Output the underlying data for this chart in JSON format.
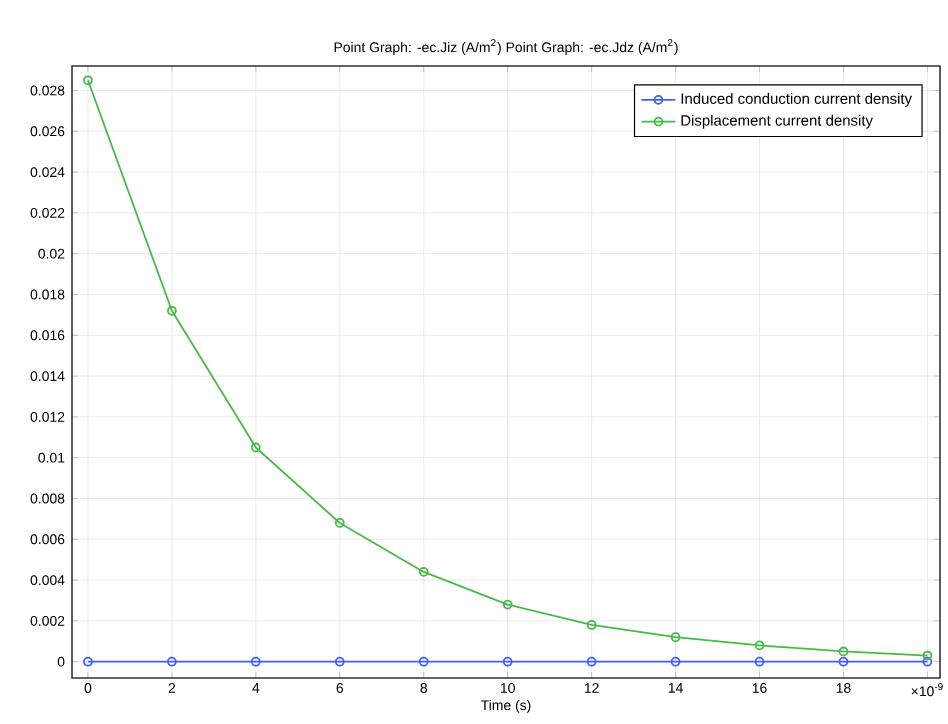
{
  "chart_data": {
    "type": "line",
    "title": "Point Graph: -ec.Jiz (A/m$^{2}$)  Point Graph: -ec.Jdz (A/m$^{2}$)",
    "xlabel": "Time (s)",
    "x": [
      0,
      2,
      4,
      6,
      8,
      10,
      12,
      14,
      16,
      18,
      20
    ],
    "series": [
      {
        "name": "Induced conduction current density",
        "color": "#3f5fff",
        "values": [
          0,
          0,
          0,
          0,
          0,
          0,
          0,
          0,
          0,
          0,
          0
        ]
      },
      {
        "name": "Displacement current density",
        "color": "#45bb45",
        "values": [
          0.0285,
          0.0172,
          0.0105,
          0.0068,
          0.0044,
          0.0028,
          0.0018,
          0.0012,
          0.0008,
          0.0005,
          0.0003
        ]
      }
    ],
    "xlim": [
      -0.38,
      20.3
    ],
    "ylim": [
      -0.0008,
      0.0292
    ],
    "xticks": [
      0,
      2,
      4,
      6,
      8,
      10,
      12,
      14,
      16,
      18,
      {
        "value": 20,
        "label": "×10$^{-9}$"
      }
    ],
    "yticks": [
      0,
      0.002,
      0.004,
      0.006,
      0.008,
      0.01,
      0.012,
      0.014,
      0.016,
      0.018,
      0.02,
      0.022,
      0.024,
      0.026,
      0.028
    ],
    "grid": true,
    "legend": "top right",
    "marker": "circle",
    "line_style": "solid"
  }
}
